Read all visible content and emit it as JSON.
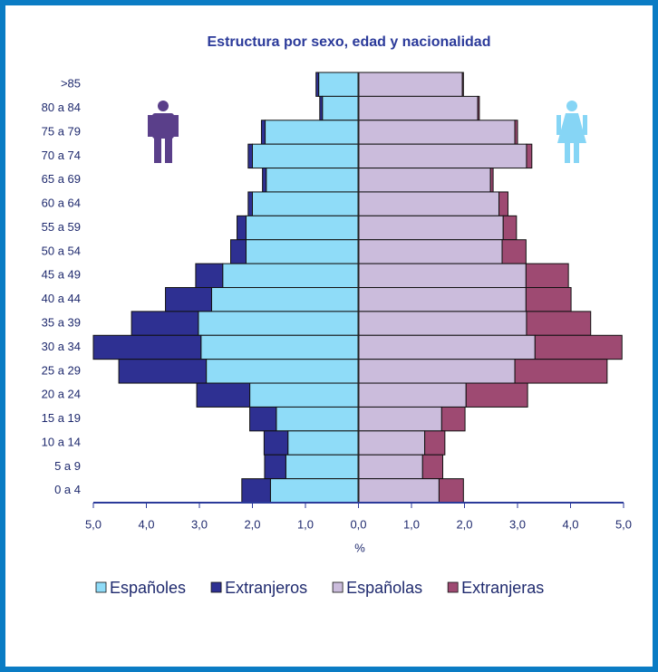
{
  "chart_data": {
    "type": "pyramid",
    "title": "Estructura por sexo, edad y nacionalidad",
    "x_label": "%",
    "categories": [
      ">85",
      "80 a 84",
      "75 a 79",
      "70 a 74",
      "65 a 69",
      "60 a 64",
      "55 a 59",
      "50 a 54",
      "45 a 49",
      "40 a 44",
      "35 a 39",
      "30 a 34",
      "25 a 29",
      "20 a 24",
      "15 a 19",
      "10 a 14",
      "5 a 9",
      "0 a 4"
    ],
    "xlim": [
      -5,
      5
    ],
    "xticks": [
      {
        "value": -5,
        "label": "5,0"
      },
      {
        "value": -4,
        "label": "4,0"
      },
      {
        "value": -3,
        "label": "3,0"
      },
      {
        "value": -2,
        "label": "2,0"
      },
      {
        "value": -1,
        "label": "1,0"
      },
      {
        "value": 0,
        "label": "0,0"
      },
      {
        "value": 1,
        "label": "1,0"
      },
      {
        "value": 2,
        "label": "2,0"
      },
      {
        "value": 3,
        "label": "3,0"
      },
      {
        "value": 4,
        "label": "4,0"
      },
      {
        "value": 5,
        "label": "5,0"
      }
    ],
    "series": [
      {
        "name": "Españoles",
        "side": "left",
        "color": "#8fdcf8",
        "values": [
          0.75,
          0.68,
          1.76,
          2.0,
          1.74,
          2.0,
          2.12,
          2.12,
          2.56,
          2.77,
          3.02,
          2.97,
          2.87,
          2.05,
          1.55,
          1.33,
          1.37,
          1.66
        ]
      },
      {
        "name": "Extranjeros",
        "side": "left",
        "color": "#2e3092",
        "values": [
          0.05,
          0.05,
          0.07,
          0.08,
          0.07,
          0.08,
          0.17,
          0.29,
          0.51,
          0.87,
          1.26,
          2.03,
          1.65,
          1.0,
          0.5,
          0.45,
          0.4,
          0.54
        ]
      },
      {
        "name": "Españolas",
        "side": "right",
        "color": "#cbbcdc",
        "values": [
          1.96,
          2.25,
          2.95,
          3.17,
          2.49,
          2.65,
          2.73,
          2.71,
          3.16,
          3.16,
          3.17,
          3.33,
          2.95,
          2.03,
          1.57,
          1.25,
          1.21,
          1.52
        ]
      },
      {
        "name": "Extranjeras",
        "side": "right",
        "color": "#9e4a72",
        "values": [
          0.02,
          0.03,
          0.05,
          0.1,
          0.05,
          0.17,
          0.25,
          0.45,
          0.8,
          0.85,
          1.21,
          1.64,
          1.74,
          1.16,
          0.44,
          0.38,
          0.38,
          0.46
        ]
      }
    ]
  }
}
